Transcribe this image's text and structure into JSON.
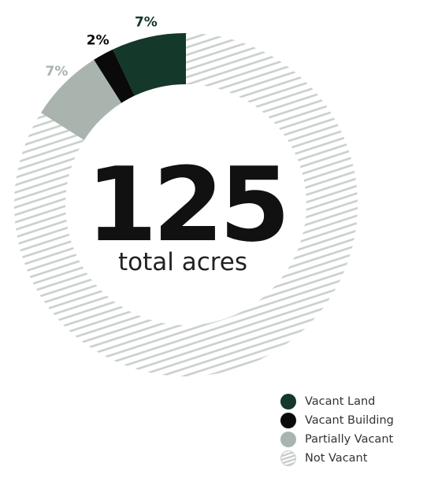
{
  "chart_data": {
    "type": "pie",
    "style": "donut",
    "total_value": "125",
    "total_caption": "total acres",
    "slices": [
      {
        "label": "Vacant Land",
        "value": 7,
        "display": "7%",
        "color": "#14382a"
      },
      {
        "label": "Vacant Building",
        "value": 2,
        "display": "2%",
        "color": "#0a0a0a"
      },
      {
        "label": "Partially Vacant",
        "value": 7,
        "display": "7%",
        "color": "#a9b4ae"
      },
      {
        "label": "Not Vacant",
        "value": 84,
        "display": "",
        "color": "#c9cfcb",
        "pattern": "diagonal-hatch"
      }
    ],
    "label_colors": [
      "#14382a",
      "#0a0a0a",
      "#a9b4ae"
    ],
    "legend_position": "bottom-right"
  }
}
